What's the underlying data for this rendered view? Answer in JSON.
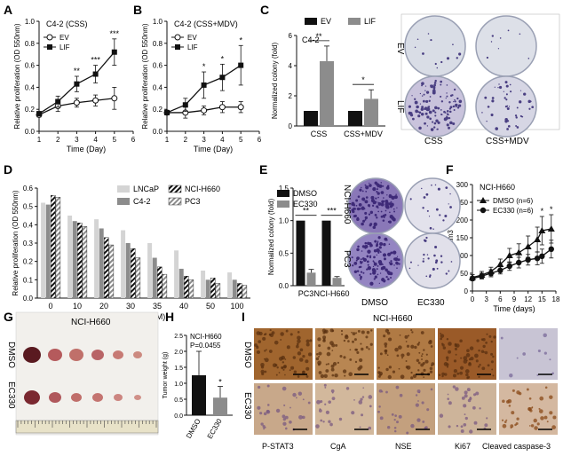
{
  "panel_labels": {
    "A": "A",
    "B": "B",
    "C": "C",
    "D": "D",
    "E": "E",
    "F": "F",
    "G": "G",
    "H": "H",
    "I": "I"
  },
  "colors": {
    "black": "#111111",
    "gray": "#8c8c8c",
    "lightgray": "#d4d4d4",
    "plate_bg": "#dde1e8",
    "colony": "#4a3f82",
    "tissue_brown": "#8b5a2b"
  },
  "chart_data": [
    {
      "panel": "A",
      "type": "line",
      "title": "C4-2 (CSS)",
      "xlabel": "Time (Day)",
      "ylabel": "Relative proliferation (OD 550nm)",
      "xlim": [
        1,
        6
      ],
      "ylim": [
        0,
        1.0
      ],
      "xticks": [
        "1",
        "2",
        "3",
        "4",
        "5",
        "6"
      ],
      "yticks": [
        "0.0",
        "0.2",
        "0.4",
        "0.6",
        "0.8",
        "1.0"
      ],
      "x": [
        1,
        2,
        3,
        4,
        5
      ],
      "series": [
        {
          "name": "EV",
          "marker": "open-circle",
          "values": [
            0.15,
            0.23,
            0.26,
            0.28,
            0.3
          ],
          "err": [
            0.02,
            0.05,
            0.04,
            0.05,
            0.1
          ]
        },
        {
          "name": "LIF",
          "marker": "filled-square",
          "values": [
            0.16,
            0.27,
            0.43,
            0.52,
            0.72
          ],
          "err": [
            0.02,
            0.05,
            0.07,
            0.08,
            0.12
          ]
        }
      ],
      "annotations": [
        {
          "x": 3,
          "text": "**"
        },
        {
          "x": 4,
          "text": "***"
        },
        {
          "x": 5,
          "text": "***"
        }
      ]
    },
    {
      "panel": "B",
      "type": "line",
      "title": "C4-2 (CSS+MDV)",
      "xlabel": "Time (Day)",
      "ylabel": "Relative proliferation (OD 550nm)",
      "xlim": [
        1,
        6
      ],
      "ylim": [
        0,
        1.0
      ],
      "xticks": [
        "1",
        "2",
        "3",
        "4",
        "5",
        "6"
      ],
      "yticks": [
        "0.0",
        "0.2",
        "0.4",
        "0.6",
        "0.8",
        "1.0"
      ],
      "x": [
        1,
        2,
        3,
        4,
        5
      ],
      "series": [
        {
          "name": "EV",
          "marker": "open-circle",
          "values": [
            0.17,
            0.17,
            0.19,
            0.22,
            0.22
          ],
          "err": [
            0.02,
            0.05,
            0.04,
            0.05,
            0.05
          ]
        },
        {
          "name": "LIF",
          "marker": "filled-square",
          "values": [
            0.17,
            0.24,
            0.42,
            0.49,
            0.6
          ],
          "err": [
            0.02,
            0.06,
            0.12,
            0.12,
            0.18
          ]
        }
      ],
      "annotations": [
        {
          "x": 3,
          "text": "*"
        },
        {
          "x": 4,
          "text": "*"
        },
        {
          "x": 5,
          "text": "*"
        }
      ]
    },
    {
      "panel": "C",
      "type": "bar",
      "title": "C4-2",
      "ylabel": "Normalized colony (fold)",
      "ylim": [
        0,
        6
      ],
      "yticks": [
        "0",
        "2",
        "4",
        "6"
      ],
      "categories": [
        "CSS",
        "CSS+MDV"
      ],
      "series": [
        {
          "name": "EV",
          "values": [
            1.0,
            1.0
          ],
          "err": [
            0,
            0
          ]
        },
        {
          "name": "LIF",
          "values": [
            4.3,
            1.8
          ],
          "err": [
            1.0,
            0.6
          ]
        }
      ],
      "annotations": [
        {
          "category": "CSS",
          "text": "**"
        },
        {
          "category": "CSS+MDV",
          "text": "*"
        }
      ]
    },
    {
      "panel": "D",
      "type": "bar",
      "xlabel": "EC330 (nM)",
      "ylabel": "Relative proliferation (OD 550nm)",
      "ylim": [
        0,
        0.6
      ],
      "yticks": [
        "0.0",
        "0.1",
        "0.2",
        "0.3",
        "0.4",
        "0.5",
        "0.6"
      ],
      "categories": [
        "0",
        "10",
        "20",
        "30",
        "35",
        "40",
        "50",
        "100"
      ],
      "series": [
        {
          "name": "LNCaP",
          "values": [
            0.52,
            0.45,
            0.43,
            0.37,
            0.3,
            0.26,
            0.15,
            0.14
          ]
        },
        {
          "name": "C4-2",
          "values": [
            0.51,
            0.42,
            0.38,
            0.3,
            0.22,
            0.16,
            0.1,
            0.1
          ]
        },
        {
          "name": "NCI-H660",
          "values": [
            0.56,
            0.41,
            0.33,
            0.27,
            0.17,
            0.12,
            0.11,
            0.08
          ]
        },
        {
          "name": "PC3",
          "values": [
            0.55,
            0.39,
            0.29,
            0.22,
            0.13,
            0.1,
            0.08,
            0.07
          ]
        }
      ]
    },
    {
      "panel": "E",
      "type": "bar",
      "ylabel": "Normalized colony (fold)",
      "ylim": [
        0,
        1.5
      ],
      "yticks": [
        "0.0",
        "0.5",
        "1.0",
        "1.5"
      ],
      "categories": [
        "PC3",
        "NCI-H660"
      ],
      "series": [
        {
          "name": "DMSO",
          "values": [
            1.0,
            1.0
          ],
          "err": [
            0,
            0
          ]
        },
        {
          "name": "EC330",
          "values": [
            0.2,
            0.12
          ],
          "err": [
            0.05,
            0.02
          ]
        }
      ],
      "annotations": [
        {
          "category": "PC3",
          "text": "**"
        },
        {
          "category": "NCI-H660",
          "text": "***"
        }
      ]
    },
    {
      "panel": "F",
      "type": "line",
      "title": "NCI-H660",
      "xlabel": "Time (days)",
      "ylabel": "mm3",
      "xlim": [
        0,
        18
      ],
      "ylim": [
        0,
        300
      ],
      "xticks": [
        "0",
        "3",
        "6",
        "9",
        "12",
        "15",
        "18"
      ],
      "yticks": [
        "0",
        "50",
        "100",
        "150",
        "200",
        "250",
        "300"
      ],
      "x": [
        0,
        2,
        4,
        6,
        8,
        10,
        12,
        14,
        15,
        17
      ],
      "series": [
        {
          "name": "DMSO (n=6)",
          "marker": "filled-triangle",
          "values": [
            38,
            45,
            55,
            75,
            100,
            108,
            125,
            145,
            170,
            175
          ],
          "err": [
            8,
            10,
            12,
            15,
            20,
            25,
            30,
            35,
            40,
            40
          ]
        },
        {
          "name": "EC330 (n=6)",
          "marker": "filled-circle",
          "values": [
            35,
            42,
            50,
            58,
            70,
            80,
            88,
            92,
            98,
            118
          ],
          "err": [
            6,
            8,
            10,
            10,
            12,
            15,
            15,
            18,
            20,
            25
          ]
        }
      ],
      "annotations": [
        {
          "x": 15,
          "text": "*"
        },
        {
          "x": 17,
          "text": "*"
        }
      ]
    },
    {
      "panel": "H",
      "type": "bar",
      "title": "NCI-H660",
      "subtitle": "P=0.0455",
      "ylabel": "Tumor weight (g)",
      "ylim": [
        0,
        2.5
      ],
      "yticks": [
        "0.0",
        "0.5",
        "1.0",
        "1.5",
        "2.0",
        "2.5"
      ],
      "categories": [
        "DMSO",
        "EC330"
      ],
      "values": [
        1.25,
        0.55
      ],
      "err": [
        0.75,
        0.35
      ],
      "annotations": [
        {
          "category": "EC330",
          "text": "*"
        }
      ]
    }
  ],
  "c_photos": {
    "rows": [
      "EV",
      "LIF"
    ],
    "cols": [
      "CSS",
      "CSS+MDV"
    ]
  },
  "e_photos": {
    "rows": [
      "NCI-H660",
      "PC3"
    ],
    "cols": [
      "DMSO",
      "EC330"
    ]
  },
  "g_photo": {
    "title": "NCI-H660",
    "rows": [
      "DMSO",
      "EC330"
    ]
  },
  "i_panel": {
    "title": "NCI-H660",
    "rows": [
      "DMSO",
      "EC330"
    ],
    "cols": [
      "P-STAT3",
      "CgA",
      "NSE",
      "Ki67",
      "Cleaved caspase-3"
    ]
  }
}
